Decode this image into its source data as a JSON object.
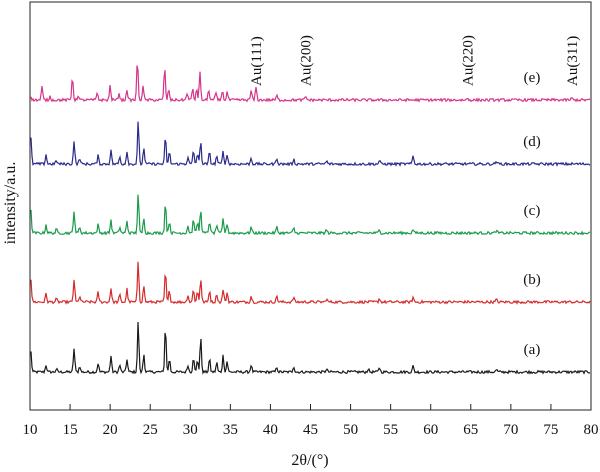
{
  "chart_data": {
    "type": "line",
    "title": "",
    "xlabel": "2θ/(°)",
    "ylabel": "intensity/a.u.",
    "xlim": [
      10,
      80
    ],
    "xticks": [
      10,
      15,
      20,
      25,
      30,
      35,
      40,
      45,
      50,
      55,
      60,
      65,
      70,
      75,
      80
    ],
    "y_ticks_shown": false,
    "grid": false,
    "annotations": [
      {
        "text": "Au(111)",
        "x": 38.2
      },
      {
        "text": "Au(200)",
        "x": 44.4
      },
      {
        "text": "Au(220)",
        "x": 64.6
      },
      {
        "text": "Au(311)",
        "x": 77.6
      }
    ],
    "series": [
      {
        "label": "(a)",
        "color": "#1a1a1a",
        "baseline": 0.0,
        "peaks": [
          {
            "x": 10.1,
            "h": 0.35
          },
          {
            "x": 12.0,
            "h": 0.12
          },
          {
            "x": 13.3,
            "h": 0.05
          },
          {
            "x": 15.5,
            "h": 0.4
          },
          {
            "x": 16.2,
            "h": 0.1
          },
          {
            "x": 18.5,
            "h": 0.15
          },
          {
            "x": 20.1,
            "h": 0.27
          },
          {
            "x": 21.2,
            "h": 0.12
          },
          {
            "x": 22.1,
            "h": 0.22
          },
          {
            "x": 23.5,
            "h": 0.85
          },
          {
            "x": 24.2,
            "h": 0.3
          },
          {
            "x": 26.9,
            "h": 0.78
          },
          {
            "x": 27.4,
            "h": 0.22
          },
          {
            "x": 29.7,
            "h": 0.12
          },
          {
            "x": 30.4,
            "h": 0.26
          },
          {
            "x": 30.9,
            "h": 0.2
          },
          {
            "x": 31.3,
            "h": 0.58
          },
          {
            "x": 32.4,
            "h": 0.22
          },
          {
            "x": 33.3,
            "h": 0.16
          },
          {
            "x": 34.1,
            "h": 0.28
          },
          {
            "x": 34.6,
            "h": 0.18
          },
          {
            "x": 37.6,
            "h": 0.12
          },
          {
            "x": 40.8,
            "h": 0.08
          },
          {
            "x": 42.9,
            "h": 0.1
          },
          {
            "x": 47.0,
            "h": 0.05
          },
          {
            "x": 52.2,
            "h": 0.05
          },
          {
            "x": 53.6,
            "h": 0.08
          },
          {
            "x": 57.8,
            "h": 0.1
          },
          {
            "x": 68.2,
            "h": 0.04
          }
        ]
      },
      {
        "label": "(b)",
        "color": "#d42b2b",
        "baseline": 1.0,
        "peaks": [
          {
            "x": 10.1,
            "h": 0.4
          },
          {
            "x": 12.0,
            "h": 0.14
          },
          {
            "x": 13.3,
            "h": 0.05
          },
          {
            "x": 15.5,
            "h": 0.38
          },
          {
            "x": 16.2,
            "h": 0.1
          },
          {
            "x": 18.5,
            "h": 0.16
          },
          {
            "x": 20.1,
            "h": 0.24
          },
          {
            "x": 21.2,
            "h": 0.12
          },
          {
            "x": 22.1,
            "h": 0.22
          },
          {
            "x": 23.5,
            "h": 0.7
          },
          {
            "x": 24.2,
            "h": 0.28
          },
          {
            "x": 26.9,
            "h": 0.52
          },
          {
            "x": 27.4,
            "h": 0.2
          },
          {
            "x": 29.7,
            "h": 0.12
          },
          {
            "x": 30.4,
            "h": 0.22
          },
          {
            "x": 30.9,
            "h": 0.18
          },
          {
            "x": 31.3,
            "h": 0.4
          },
          {
            "x": 32.4,
            "h": 0.2
          },
          {
            "x": 33.3,
            "h": 0.14
          },
          {
            "x": 34.1,
            "h": 0.22
          },
          {
            "x": 34.6,
            "h": 0.16
          },
          {
            "x": 37.6,
            "h": 0.1
          },
          {
            "x": 40.8,
            "h": 0.1
          },
          {
            "x": 42.9,
            "h": 0.08
          },
          {
            "x": 47.0,
            "h": 0.05
          },
          {
            "x": 53.6,
            "h": 0.06
          },
          {
            "x": 57.8,
            "h": 0.08
          },
          {
            "x": 68.2,
            "h": 0.04
          }
        ]
      },
      {
        "label": "(c)",
        "color": "#1a9a4a",
        "baseline": 2.0,
        "peaks": [
          {
            "x": 10.1,
            "h": 0.38
          },
          {
            "x": 12.0,
            "h": 0.14
          },
          {
            "x": 13.3,
            "h": 0.06
          },
          {
            "x": 15.5,
            "h": 0.38
          },
          {
            "x": 16.2,
            "h": 0.1
          },
          {
            "x": 18.5,
            "h": 0.14
          },
          {
            "x": 20.1,
            "h": 0.22
          },
          {
            "x": 21.2,
            "h": 0.1
          },
          {
            "x": 22.1,
            "h": 0.2
          },
          {
            "x": 23.5,
            "h": 0.66
          },
          {
            "x": 24.2,
            "h": 0.26
          },
          {
            "x": 26.9,
            "h": 0.52
          },
          {
            "x": 27.4,
            "h": 0.2
          },
          {
            "x": 29.7,
            "h": 0.12
          },
          {
            "x": 30.4,
            "h": 0.24
          },
          {
            "x": 30.9,
            "h": 0.18
          },
          {
            "x": 31.3,
            "h": 0.4
          },
          {
            "x": 32.4,
            "h": 0.2
          },
          {
            "x": 33.3,
            "h": 0.14
          },
          {
            "x": 34.1,
            "h": 0.24
          },
          {
            "x": 34.6,
            "h": 0.16
          },
          {
            "x": 37.6,
            "h": 0.1
          },
          {
            "x": 40.8,
            "h": 0.1
          },
          {
            "x": 42.9,
            "h": 0.08
          },
          {
            "x": 47.0,
            "h": 0.05
          },
          {
            "x": 53.6,
            "h": 0.05
          },
          {
            "x": 57.8,
            "h": 0.06
          },
          {
            "x": 68.2,
            "h": 0.04
          }
        ]
      },
      {
        "label": "(d)",
        "color": "#2a2a8a",
        "baseline": 3.0,
        "peaks": [
          {
            "x": 10.1,
            "h": 0.45
          },
          {
            "x": 12.0,
            "h": 0.16
          },
          {
            "x": 13.3,
            "h": 0.06
          },
          {
            "x": 15.5,
            "h": 0.4
          },
          {
            "x": 16.2,
            "h": 0.1
          },
          {
            "x": 18.5,
            "h": 0.14
          },
          {
            "x": 20.1,
            "h": 0.24
          },
          {
            "x": 21.2,
            "h": 0.12
          },
          {
            "x": 22.1,
            "h": 0.22
          },
          {
            "x": 23.5,
            "h": 0.72
          },
          {
            "x": 24.2,
            "h": 0.28
          },
          {
            "x": 26.9,
            "h": 0.46
          },
          {
            "x": 27.4,
            "h": 0.2
          },
          {
            "x": 29.7,
            "h": 0.12
          },
          {
            "x": 30.4,
            "h": 0.22
          },
          {
            "x": 30.9,
            "h": 0.18
          },
          {
            "x": 31.3,
            "h": 0.38
          },
          {
            "x": 32.4,
            "h": 0.2
          },
          {
            "x": 33.3,
            "h": 0.14
          },
          {
            "x": 34.1,
            "h": 0.22
          },
          {
            "x": 34.6,
            "h": 0.16
          },
          {
            "x": 37.6,
            "h": 0.1
          },
          {
            "x": 40.8,
            "h": 0.1
          },
          {
            "x": 42.9,
            "h": 0.08
          },
          {
            "x": 47.0,
            "h": 0.05
          },
          {
            "x": 53.6,
            "h": 0.06
          },
          {
            "x": 57.8,
            "h": 0.14
          },
          {
            "x": 68.2,
            "h": 0.05
          }
        ]
      },
      {
        "label": "(e)",
        "color": "#d6338a",
        "baseline": 4.0,
        "peaks": [
          {
            "x": 10.1,
            "h": 0.06
          },
          {
            "x": 11.5,
            "h": 0.22
          },
          {
            "x": 12.5,
            "h": 0.06
          },
          {
            "x": 15.3,
            "h": 0.4
          },
          {
            "x": 16.0,
            "h": 0.08
          },
          {
            "x": 18.4,
            "h": 0.12
          },
          {
            "x": 20.0,
            "h": 0.24
          },
          {
            "x": 21.1,
            "h": 0.12
          },
          {
            "x": 22.1,
            "h": 0.18
          },
          {
            "x": 23.4,
            "h": 0.68
          },
          {
            "x": 24.1,
            "h": 0.24
          },
          {
            "x": 26.8,
            "h": 0.56
          },
          {
            "x": 27.3,
            "h": 0.18
          },
          {
            "x": 29.6,
            "h": 0.12
          },
          {
            "x": 30.3,
            "h": 0.2
          },
          {
            "x": 30.8,
            "h": 0.18
          },
          {
            "x": 31.2,
            "h": 0.46
          },
          {
            "x": 32.3,
            "h": 0.18
          },
          {
            "x": 33.2,
            "h": 0.12
          },
          {
            "x": 34.0,
            "h": 0.16
          },
          {
            "x": 34.6,
            "h": 0.14
          },
          {
            "x": 37.6,
            "h": 0.16
          },
          {
            "x": 38.2,
            "h": 0.22
          },
          {
            "x": 40.8,
            "h": 0.07
          },
          {
            "x": 44.4,
            "h": 0.06
          },
          {
            "x": 64.6,
            "h": 0.03
          },
          {
            "x": 77.6,
            "h": 0.03
          }
        ]
      }
    ]
  }
}
